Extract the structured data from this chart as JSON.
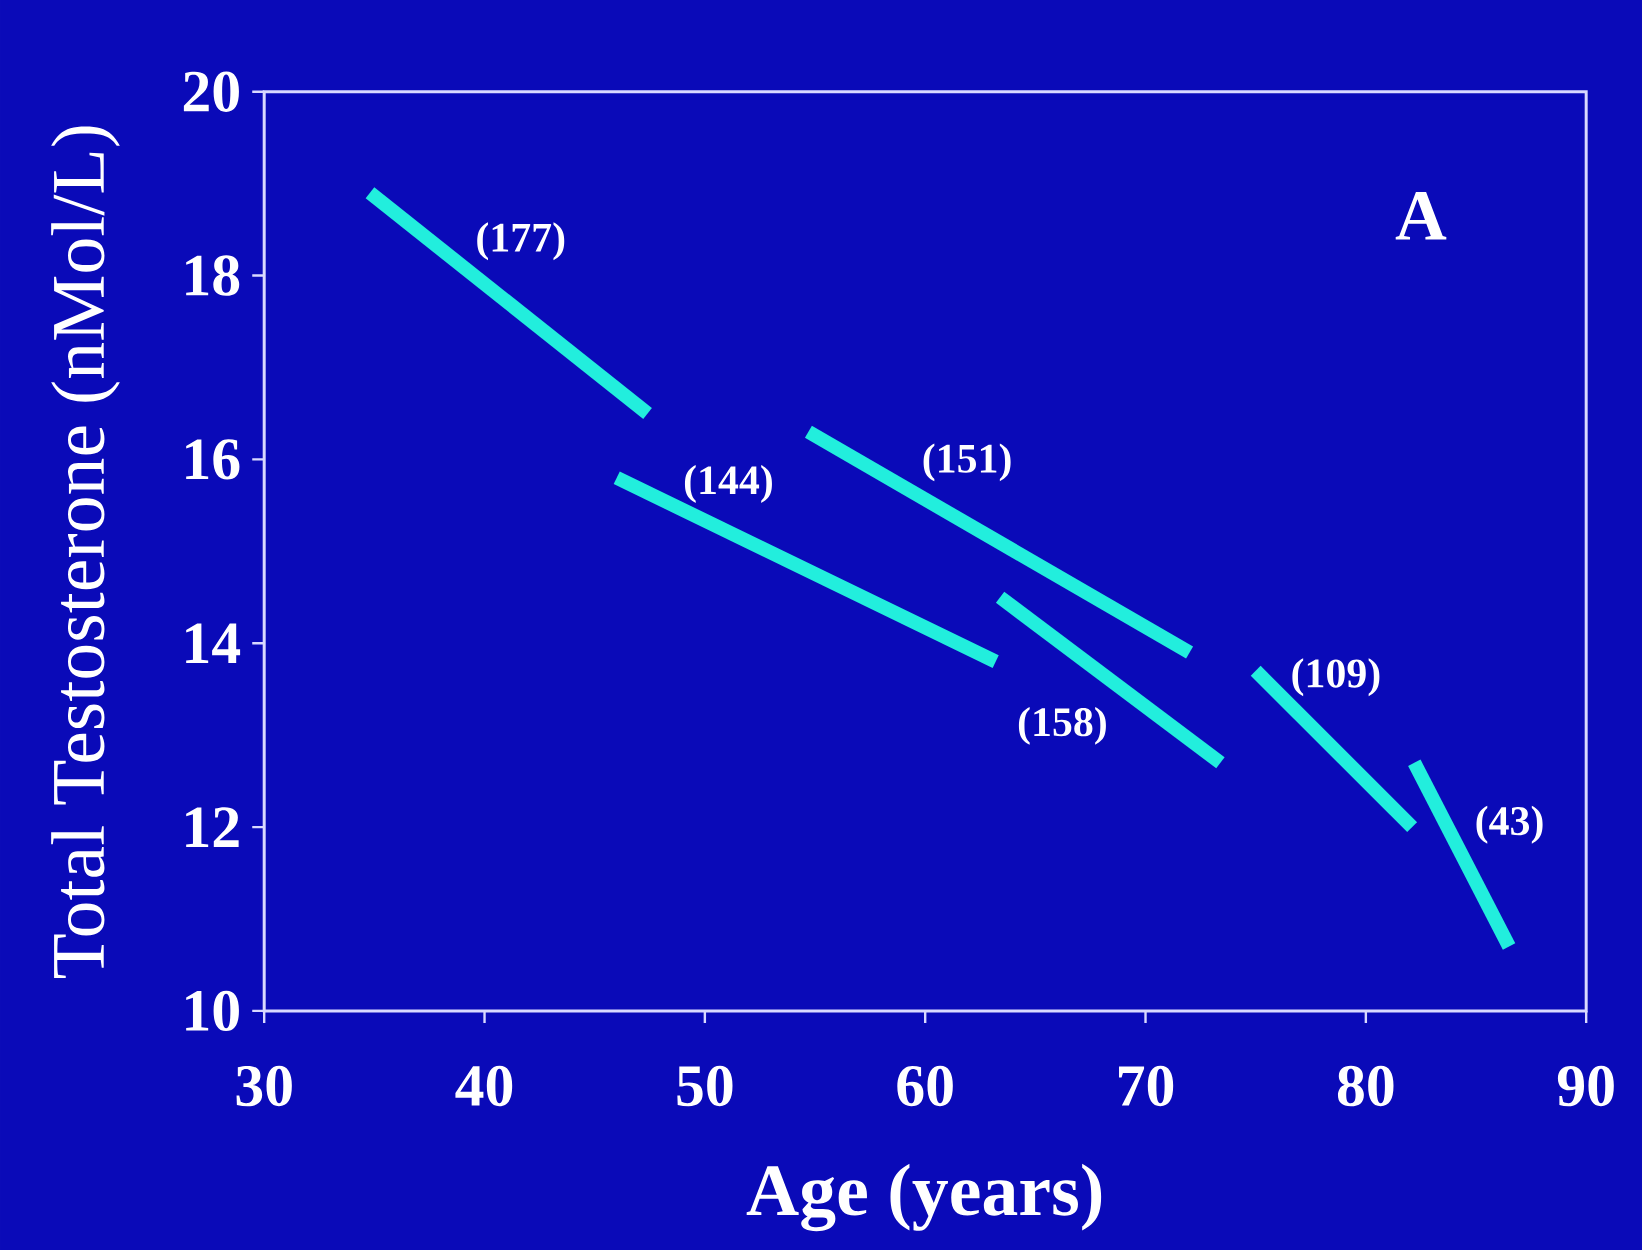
{
  "chart_data": {
    "type": "line",
    "xlabel": "Age (years)",
    "ylabel": "Total Testosterone (nMol/L)",
    "xlim": [
      30,
      90
    ],
    "ylim": [
      10,
      20
    ],
    "xticks": [
      30,
      40,
      50,
      60,
      70,
      80,
      90
    ],
    "yticks": [
      10,
      12,
      14,
      16,
      18,
      20
    ],
    "series": [
      {
        "color": "#22eedd",
        "x": [
          34.8,
          47.4
        ],
        "values": [
          18.9,
          16.5
        ]
      },
      {
        "color": "#22eedd",
        "x": [
          46.0,
          63.2
        ],
        "values": [
          15.8,
          13.8
        ]
      },
      {
        "color": "#22eedd",
        "x": [
          54.7,
          72.0
        ],
        "values": [
          16.3,
          13.9
        ]
      },
      {
        "color": "#22eedd",
        "x": [
          63.4,
          73.4
        ],
        "values": [
          14.5,
          12.7
        ]
      },
      {
        "color": "#22eedd",
        "x": [
          75.0,
          82.1
        ],
        "values": [
          13.7,
          12.0
        ]
      },
      {
        "color": "#22eedd",
        "x": [
          82.2,
          86.5
        ],
        "values": [
          12.7,
          10.7
        ]
      }
    ],
    "annotations": [
      "(177)",
      "(144)",
      "(151)",
      "(158)",
      "(109)",
      "(43)",
      "A"
    ]
  }
}
